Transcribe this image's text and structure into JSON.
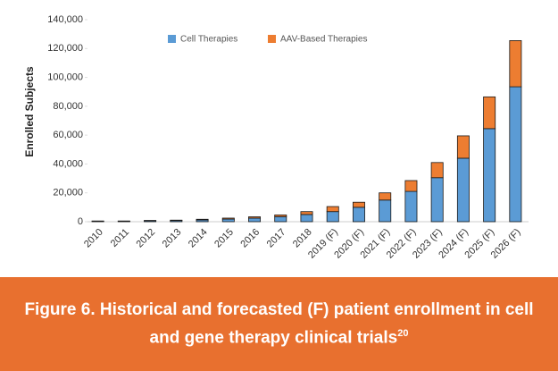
{
  "chart_data": {
    "type": "stacked_bar",
    "y_label": "Enrolled Subjects",
    "categories": [
      "2010",
      "2011",
      "2012",
      "2013",
      "2014",
      "2015",
      "2016",
      "2017",
      "2018",
      "2019 (F)",
      "2020 (F)",
      "2021 (F)",
      "2022 (F)",
      "2023 (F)",
      "2024 (F)",
      "2025 (F)",
      "2026 (F)"
    ],
    "series": [
      {
        "name": "Cell Therapies",
        "color": "#5b9bd5",
        "values": [
          400,
          400,
          700,
          800,
          1200,
          1800,
          2500,
          3500,
          5000,
          7000,
          10000,
          15000,
          21000,
          30500,
          44000,
          64500,
          93500
        ]
      },
      {
        "name": "AAV-Based Therapies",
        "color": "#ed7d31",
        "values": [
          100,
          100,
          200,
          300,
          500,
          700,
          900,
          1200,
          2000,
          3500,
          3500,
          5000,
          7500,
          10500,
          15500,
          22000,
          32000
        ]
      }
    ],
    "ylim": [
      0,
      140000
    ],
    "yticks": [
      0,
      {
        "value": 20000,
        "label": "20,000"
      },
      {
        "value": 40000,
        "label": "40,000"
      },
      {
        "value": 60000,
        "label": "60,000"
      },
      {
        "value": 80000,
        "label": "80,000"
      },
      {
        "value": 100000,
        "label": "100,000"
      },
      {
        "value": 120000,
        "label": "120,000"
      },
      {
        "value": 140000,
        "label": "140,000"
      }
    ],
    "grid": false,
    "legend": "top"
  },
  "caption": {
    "text": "Figure 6. Historical and forecasted (F) patient enrollment in cell and gene therapy clinical trials",
    "ref": "20"
  }
}
